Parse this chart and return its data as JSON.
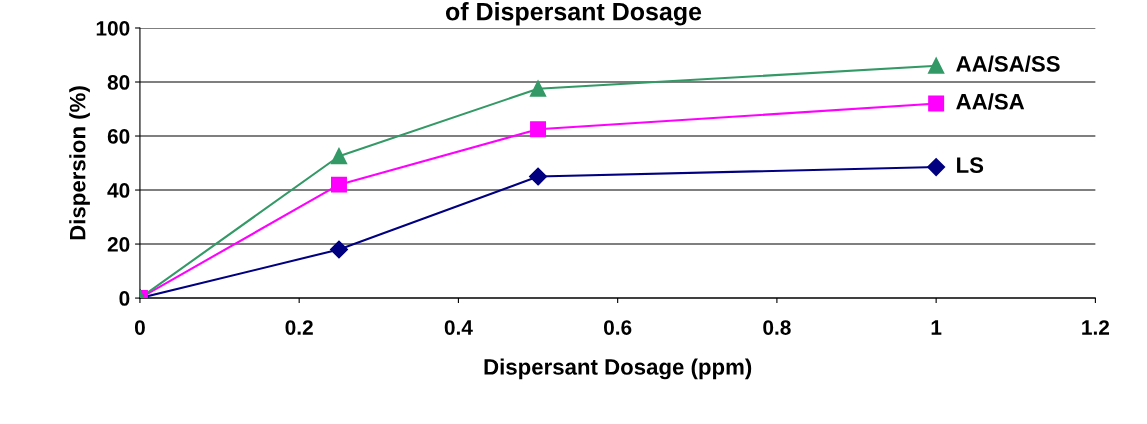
{
  "chart_data": {
    "type": "line",
    "title": "of Dispersant Dosage",
    "xlabel": "Dispersant Dosage (ppm)",
    "ylabel": "Dispersion (%)",
    "x": [
      0,
      0.25,
      0.5,
      1
    ],
    "series": [
      {
        "name": "LS",
        "color": "#000080",
        "marker": "diamond",
        "values": [
          0,
          18,
          45,
          48.5
        ]
      },
      {
        "name": "AA/SA",
        "color": "#ff00ff",
        "marker": "square",
        "values": [
          0,
          42,
          62.5,
          72
        ]
      },
      {
        "name": "AA/SA/SS",
        "color": "#339966",
        "marker": "triangle",
        "values": [
          0,
          52.5,
          77.5,
          86
        ]
      }
    ],
    "xlim": [
      0,
      1.2
    ],
    "xticks": [
      0,
      0.2,
      0.4,
      0.6,
      0.8,
      1,
      1.2
    ],
    "ylim": [
      0,
      100
    ],
    "yticks": [
      0,
      20,
      40,
      60,
      80,
      100
    ],
    "grid": "y",
    "legend": false
  }
}
